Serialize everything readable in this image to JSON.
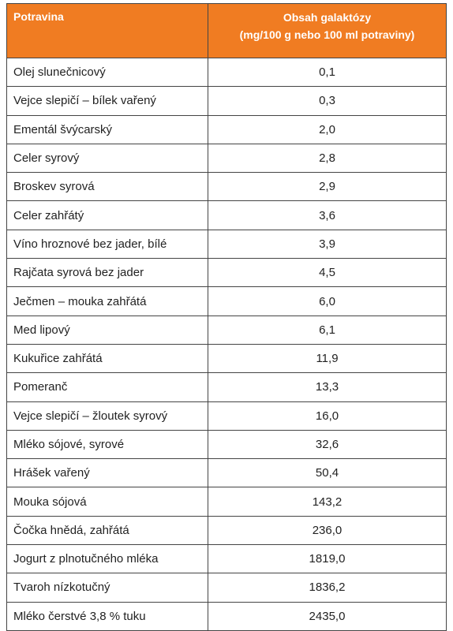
{
  "table": {
    "header": {
      "food": "Potravina",
      "content": [
        "Obsah galaktózy",
        "(mg/100 g nebo 100 ml potraviny)"
      ]
    },
    "rows": [
      [
        "Olej slunečnicový",
        "0,1"
      ],
      [
        "Vejce slepičí – bílek vařený",
        "0,3"
      ],
      [
        "Ementál švýcarský",
        "2,0"
      ],
      [
        "Celer syrový",
        "2,8"
      ],
      [
        "Broskev syrová",
        "2,9"
      ],
      [
        "Celer zahřátý",
        "3,6"
      ],
      [
        "Víno hroznové bez jader, bílé",
        "3,9"
      ],
      [
        "Rajčata syrová bez jader",
        "4,5"
      ],
      [
        "Ječmen – mouka zahřátá",
        "6,0"
      ],
      [
        "Med lipový",
        "6,1"
      ],
      [
        "Kukuřice zahřátá",
        "11,9"
      ],
      [
        "Pomeranč",
        "13,3"
      ],
      [
        "Vejce slepičí – žloutek syrový",
        "16,0"
      ],
      [
        "Mléko sójové, syrové",
        "32,6"
      ],
      [
        "Hrášek vařený",
        "50,4"
      ],
      [
        "Mouka sójová",
        "143,2"
      ],
      [
        "Čočka hnědá, zahřátá",
        "236,0"
      ],
      [
        "Jogurt z plnotučného mléka",
        "1819,0"
      ],
      [
        "Tvaroh nízkotučný",
        "1836,2"
      ],
      [
        "Mléko čerstvé 3,8 % tuku",
        "2435,0"
      ]
    ]
  }
}
